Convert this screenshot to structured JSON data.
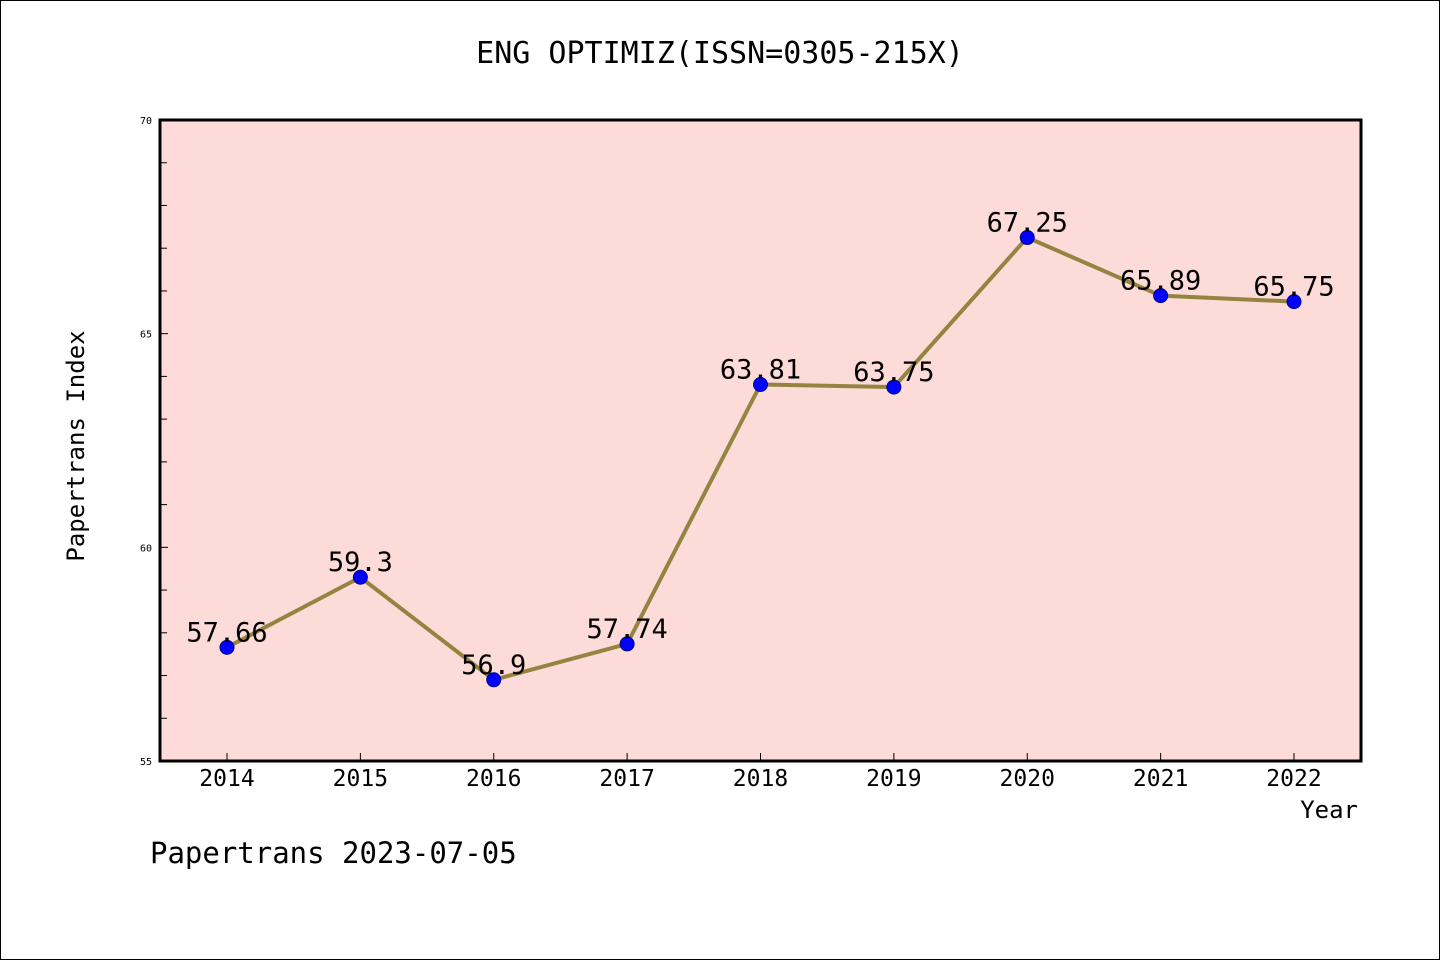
{
  "chart_data": {
    "type": "line",
    "title": "ENG OPTIMIZ(ISSN=0305-215X)",
    "xlabel": "Year",
    "ylabel": "Papertrans Index",
    "categories": [
      "2014",
      "2015",
      "2016",
      "2017",
      "2018",
      "2019",
      "2020",
      "2021",
      "2022"
    ],
    "series": [
      {
        "values": [
          57.66,
          59.3,
          56.9,
          57.74,
          63.81,
          63.75,
          67.25,
          65.89,
          65.75
        ],
        "labels": [
          "57.66",
          "59.3",
          "56.9",
          "57.74",
          "63.81",
          "63.75",
          "67.25",
          "65.89",
          "65.75"
        ]
      }
    ],
    "ylim": [
      55,
      70
    ],
    "yticks": [
      "55",
      "60",
      "65",
      "70"
    ],
    "grid": false,
    "legend": "none",
    "colors": {
      "plot_background": "#fddbd8",
      "line": "#948440",
      "marker": "#0000ff"
    }
  },
  "footer": {
    "text": "Papertrans 2023-07-05"
  }
}
